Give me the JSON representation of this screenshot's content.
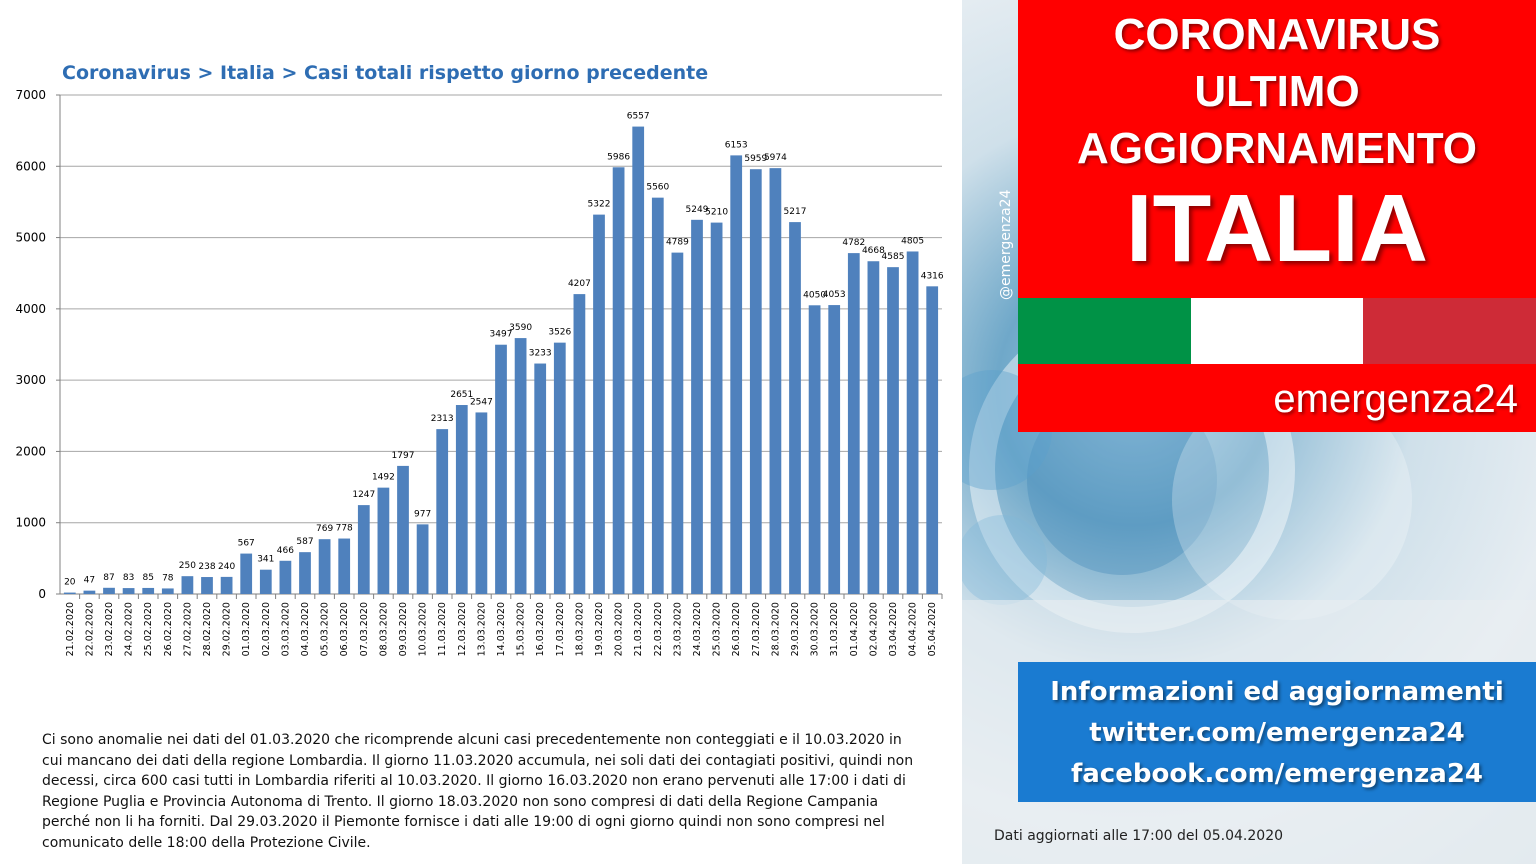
{
  "chart_data": {
    "type": "bar",
    "title": "Coronavirus > Italia > Casi totali rispetto giorno precedente",
    "xlabel": "",
    "ylabel": "",
    "ylim": [
      0,
      7000
    ],
    "yticks": [
      0,
      1000,
      2000,
      3000,
      4000,
      5000,
      6000,
      7000
    ],
    "grid": true,
    "bar_color": "#4f81bd",
    "categories": [
      "21.02.2020",
      "22.02.2020",
      "23.02.2020",
      "24.02.2020",
      "25.02.2020",
      "26.02.2020",
      "27.02.2020",
      "28.02.2020",
      "29.02.2020",
      "01.03.2020",
      "02.03.2020",
      "03.03.2020",
      "04.03.2020",
      "05.03.2020",
      "06.03.2020",
      "07.03.2020",
      "08.03.2020",
      "09.03.2020",
      "10.03.2020",
      "11.03.2020",
      "12.03.2020",
      "13.03.2020",
      "14.03.2020",
      "15.03.2020",
      "16.03.2020",
      "17.03.2020",
      "18.03.2020",
      "19.03.2020",
      "20.03.2020",
      "21.03.2020",
      "22.03.2020",
      "23.03.2020",
      "24.03.2020",
      "25.03.2020",
      "26.03.2020",
      "27.03.2020",
      "28.03.2020",
      "29.03.2020",
      "30.03.2020",
      "31.03.2020",
      "01.04.2020",
      "02.04.2020",
      "03.04.2020",
      "04.04.2020",
      "05.04.2020"
    ],
    "values": [
      20,
      47,
      87,
      83,
      85,
      78,
      250,
      238,
      240,
      567,
      341,
      466,
      587,
      769,
      778,
      1247,
      1492,
      1797,
      977,
      2313,
      2651,
      2547,
      3497,
      3590,
      3233,
      3526,
      4207,
      5322,
      5986,
      6557,
      5560,
      4789,
      5249,
      5210,
      6153,
      5959,
      5974,
      5217,
      4050,
      4053,
      4782,
      4668,
      4585,
      4805,
      4316
    ]
  },
  "note": "Ci sono anomalie nei dati del 01.03.2020 che ricomprende alcuni casi precedentemente non conteggiati e il 10.03.2020 in cui mancano dei dati della regione Lombardia. Il giorno 11.03.2020 accumula, nei soli dati dei contagiati positivi, quindi non decessi, circa 600 casi tutti in Lombardia riferiti al 10.03.2020. Il giorno 16.03.2020 non erano pervenuti alle 17:00 i dati di Regione Puglia e Provincia Autonoma di Trento. Il giorno 18.03.2020 non sono compresi di dati della Regione Campania perché non li ha forniti. Dal 29.03.2020 il Piemonte fornisce i dati alle 19:00 di ogni giorno quindi non sono compresi nel comunicato delle 18:00 della Protezione Civile.",
  "banner": {
    "line1": "CORONAVIRUS",
    "line2": "ULTIMO",
    "line3": "AGGIORNAMENTO",
    "country": "ITALIA",
    "color": "#ff0000"
  },
  "flag_colors": [
    "#009246",
    "#ffffff",
    "#ce2b37"
  ],
  "brand": "emergenza24",
  "handle": "@emergenza24",
  "info": {
    "line1": "Informazioni ed aggiornamenti",
    "line2": "twitter.com/emergenza24",
    "line3": "facebook.com/emergenza24",
    "color": "#1a7bd1"
  },
  "updated": "Dati aggiornati alle 17:00 del 05.04.2020"
}
